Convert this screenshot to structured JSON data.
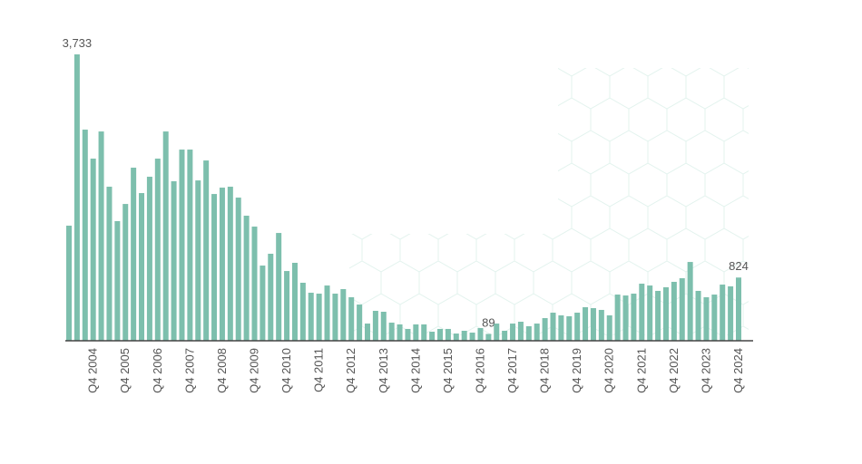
{
  "chart_data": {
    "type": "bar",
    "categories": [
      null,
      null,
      null,
      "Q4 2004",
      null,
      null,
      null,
      "Q4 2005",
      null,
      null,
      null,
      "Q4 2006",
      null,
      null,
      null,
      "Q4 2007",
      null,
      null,
      null,
      "Q4 2008",
      null,
      null,
      null,
      "Q4 2009",
      null,
      null,
      null,
      "Q4 2010",
      null,
      null,
      null,
      "Q4 2011",
      null,
      null,
      null,
      "Q4 2012",
      null,
      null,
      null,
      "Q4 2013",
      null,
      null,
      null,
      "Q4 2014",
      null,
      null,
      null,
      "Q4 2015",
      null,
      null,
      null,
      "Q4 2016",
      null,
      null,
      null,
      "Q4 2017",
      null,
      null,
      null,
      "Q4 2018",
      null,
      null,
      null,
      "Q4 2019",
      null,
      null,
      null,
      "Q4 2020",
      null,
      null,
      null,
      "Q4 2021",
      null,
      null,
      null,
      "Q4 2022",
      null,
      null,
      null,
      "Q4 2023",
      null,
      null,
      null,
      "Q4 2024"
    ],
    "values": [
      1500,
      3733,
      2752,
      2374,
      2728,
      2008,
      1559,
      1783,
      2256,
      1925,
      2138,
      2374,
      2728,
      2079,
      2492,
      2492,
      2090,
      2350,
      1913,
      1996,
      2008,
      1866,
      1630,
      1488,
      980,
      1134,
      1405,
      909,
      1016,
      756,
      626,
      614,
      720,
      614,
      673,
      567,
      472,
      224,
      390,
      378,
      236,
      213,
      154,
      213,
      213,
      118,
      154,
      154,
      94,
      130,
      106,
      165,
      89,
      224,
      130,
      224,
      248,
      189,
      224,
      295,
      366,
      331,
      319,
      366,
      437,
      425,
      402,
      331,
      602,
      590,
      614,
      744,
      720,
      650,
      697,
      768,
      815,
      1027,
      650,
      567,
      602,
      732,
      709,
      824
    ],
    "value_labels": [
      null,
      "3,733",
      null,
      null,
      null,
      null,
      null,
      null,
      null,
      null,
      null,
      null,
      null,
      null,
      null,
      null,
      null,
      null,
      null,
      null,
      null,
      null,
      null,
      null,
      null,
      null,
      null,
      null,
      null,
      null,
      null,
      null,
      null,
      null,
      null,
      null,
      null,
      null,
      null,
      null,
      null,
      null,
      null,
      null,
      null,
      null,
      null,
      null,
      null,
      null,
      null,
      null,
      "89",
      null,
      null,
      null,
      null,
      null,
      null,
      null,
      null,
      null,
      null,
      null,
      null,
      null,
      null,
      null,
      null,
      null,
      null,
      null,
      null,
      null,
      null,
      null,
      null,
      null,
      null,
      null,
      null,
      null,
      null,
      "824"
    ],
    "color": "#7dbfad",
    "ylim": [
      0,
      4000
    ]
  }
}
